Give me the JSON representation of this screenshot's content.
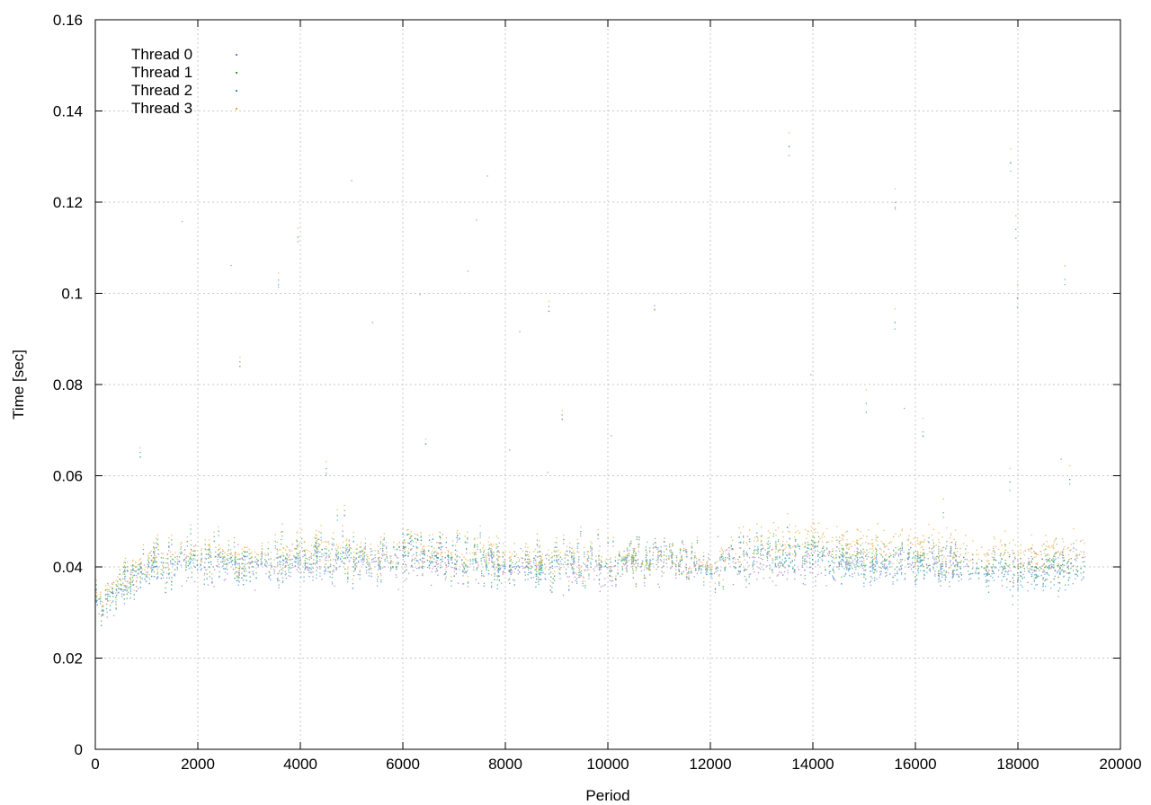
{
  "chart_data": {
    "type": "scatter",
    "title": "",
    "xlabel": "Period",
    "ylabel": "Time [sec]",
    "xlim": [
      0,
      20000
    ],
    "ylim": [
      0,
      0.16
    ],
    "x_ticks": [
      "0",
      "2000",
      "4000",
      "6000",
      "8000",
      "10000",
      "12000",
      "14000",
      "16000",
      "18000",
      "20000"
    ],
    "y_ticks": [
      "0",
      "0.02",
      "0.04",
      "0.06",
      "0.08",
      "0.1",
      "0.12",
      "0.14",
      "0.16"
    ],
    "grid": true,
    "legend_position": "top-left",
    "series": [
      {
        "name": "Thread 0",
        "color": "#9467bd",
        "x": [
          0,
          1000,
          2000,
          3000,
          4000,
          5000,
          6000,
          7000,
          8000,
          9000,
          10000,
          11000,
          12000,
          13000,
          14000,
          15000,
          16000,
          17000,
          18000,
          19000,
          19300
        ],
        "y": [
          0.031,
          0.04,
          0.041,
          0.04,
          0.041,
          0.041,
          0.041,
          0.041,
          0.04,
          0.04,
          0.04,
          0.041,
          0.041,
          0.041,
          0.041,
          0.041,
          0.041,
          0.041,
          0.04,
          0.041,
          0.041
        ]
      },
      {
        "name": "Thread 1",
        "color": "#2ca02c",
        "x": [
          0,
          1000,
          2000,
          3000,
          4000,
          5000,
          6000,
          7000,
          8000,
          9000,
          10000,
          11000,
          12000,
          13000,
          14000,
          15000,
          16000,
          17000,
          18000,
          19000,
          19300
        ],
        "y": [
          0.032,
          0.041,
          0.042,
          0.041,
          0.043,
          0.042,
          0.043,
          0.042,
          0.041,
          0.041,
          0.041,
          0.042,
          0.041,
          0.043,
          0.043,
          0.042,
          0.042,
          0.041,
          0.04,
          0.041,
          0.041
        ]
      },
      {
        "name": "Thread 2",
        "color": "#1f9ad6",
        "x": [
          0,
          1000,
          2000,
          3000,
          4000,
          5000,
          6000,
          7000,
          8000,
          9000,
          10000,
          11000,
          12000,
          13000,
          14000,
          15000,
          16000,
          17000,
          18000,
          19000,
          19300
        ],
        "y": [
          0.031,
          0.04,
          0.041,
          0.04,
          0.042,
          0.041,
          0.043,
          0.042,
          0.04,
          0.04,
          0.041,
          0.043,
          0.04,
          0.044,
          0.042,
          0.04,
          0.041,
          0.04,
          0.038,
          0.04,
          0.04
        ]
      },
      {
        "name": "Thread 3",
        "color": "#e6a62e",
        "x": [
          0,
          1000,
          2000,
          3000,
          4000,
          5000,
          6000,
          7000,
          8000,
          9000,
          10000,
          11000,
          12000,
          13000,
          14000,
          15000,
          16000,
          17000,
          18000,
          19000,
          19300
        ],
        "y": [
          0.033,
          0.042,
          0.043,
          0.042,
          0.045,
          0.043,
          0.044,
          0.043,
          0.043,
          0.042,
          0.042,
          0.042,
          0.042,
          0.046,
          0.046,
          0.045,
          0.045,
          0.044,
          0.043,
          0.044,
          0.045
        ]
      }
    ]
  }
}
